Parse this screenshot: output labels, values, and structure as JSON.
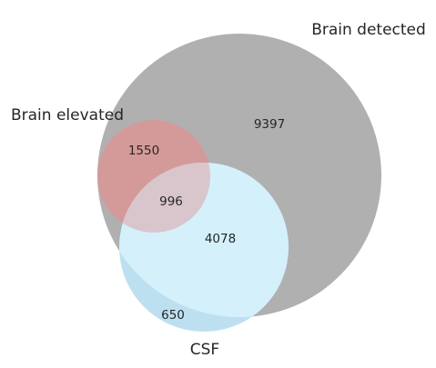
{
  "venn": {
    "sets": [
      {
        "id": "detected",
        "label": "Brain detected",
        "color": "#b0b0b0"
      },
      {
        "id": "elevated",
        "label": "Brain elevated",
        "color": "#d49a9a"
      },
      {
        "id": "csf",
        "label": "CSF",
        "color": "#d4f0fb"
      }
    ],
    "regions": {
      "detected_only": "9397",
      "elevated_detected": "1550",
      "all_three": "996",
      "detected_csf": "4078",
      "csf_only": "650"
    },
    "colors": {
      "detected": "#b0b0b0",
      "elevated": "#d49a9a",
      "csf": "#d4f0fb",
      "csf_only": "#bde0f1",
      "elevated_csf": "#d8c6cc",
      "text": "#262626"
    }
  }
}
